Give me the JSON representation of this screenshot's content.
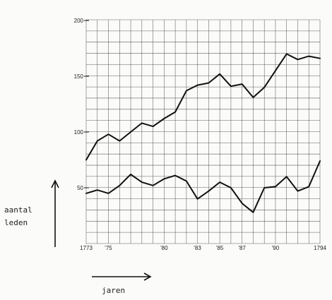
{
  "chart_data": {
    "type": "line",
    "ylabel_lines": [
      "aantal",
      "leden"
    ],
    "xlabel": "jaren",
    "ylim": [
      0,
      200
    ],
    "xlim": [
      1773,
      1794
    ],
    "grid": true,
    "ytick_labels": [
      {
        "value": 50,
        "label": "50"
      },
      {
        "value": 100,
        "label": "100"
      },
      {
        "value": 150,
        "label": "150"
      },
      {
        "value": 200,
        "label": "200"
      }
    ],
    "xtick_labels": [
      {
        "value": 1773,
        "label": "1773"
      },
      {
        "value": 1775,
        "label": "'75"
      },
      {
        "value": 1780,
        "label": "'80"
      },
      {
        "value": 1783,
        "label": "'83"
      },
      {
        "value": 1785,
        "label": "'85"
      },
      {
        "value": 1787,
        "label": "'87"
      },
      {
        "value": 1790,
        "label": "'90"
      },
      {
        "value": 1794,
        "label": "1794"
      }
    ],
    "series": [
      {
        "x": [
          1773,
          1774,
          1775,
          1776,
          1777,
          1778,
          1779,
          1780,
          1781,
          1782,
          1783,
          1784,
          1785,
          1786,
          1787,
          1788,
          1789,
          1790,
          1791,
          1792,
          1793,
          1794
        ],
        "values": [
          75,
          92,
          98,
          92,
          100,
          108,
          105,
          112,
          118,
          137,
          142,
          144,
          152,
          141,
          143,
          131,
          140,
          155,
          170,
          165,
          168,
          166
        ]
      },
      {
        "x": [
          1773,
          1774,
          1775,
          1776,
          1777,
          1778,
          1779,
          1780,
          1781,
          1782,
          1783,
          1784,
          1785,
          1786,
          1787,
          1788,
          1789,
          1790,
          1791,
          1792,
          1793,
          1794
        ],
        "values": [
          45,
          48,
          45,
          52,
          62,
          55,
          52,
          58,
          61,
          56,
          40,
          47,
          55,
          50,
          36,
          28,
          50,
          51,
          60,
          47,
          51,
          74
        ]
      }
    ]
  }
}
